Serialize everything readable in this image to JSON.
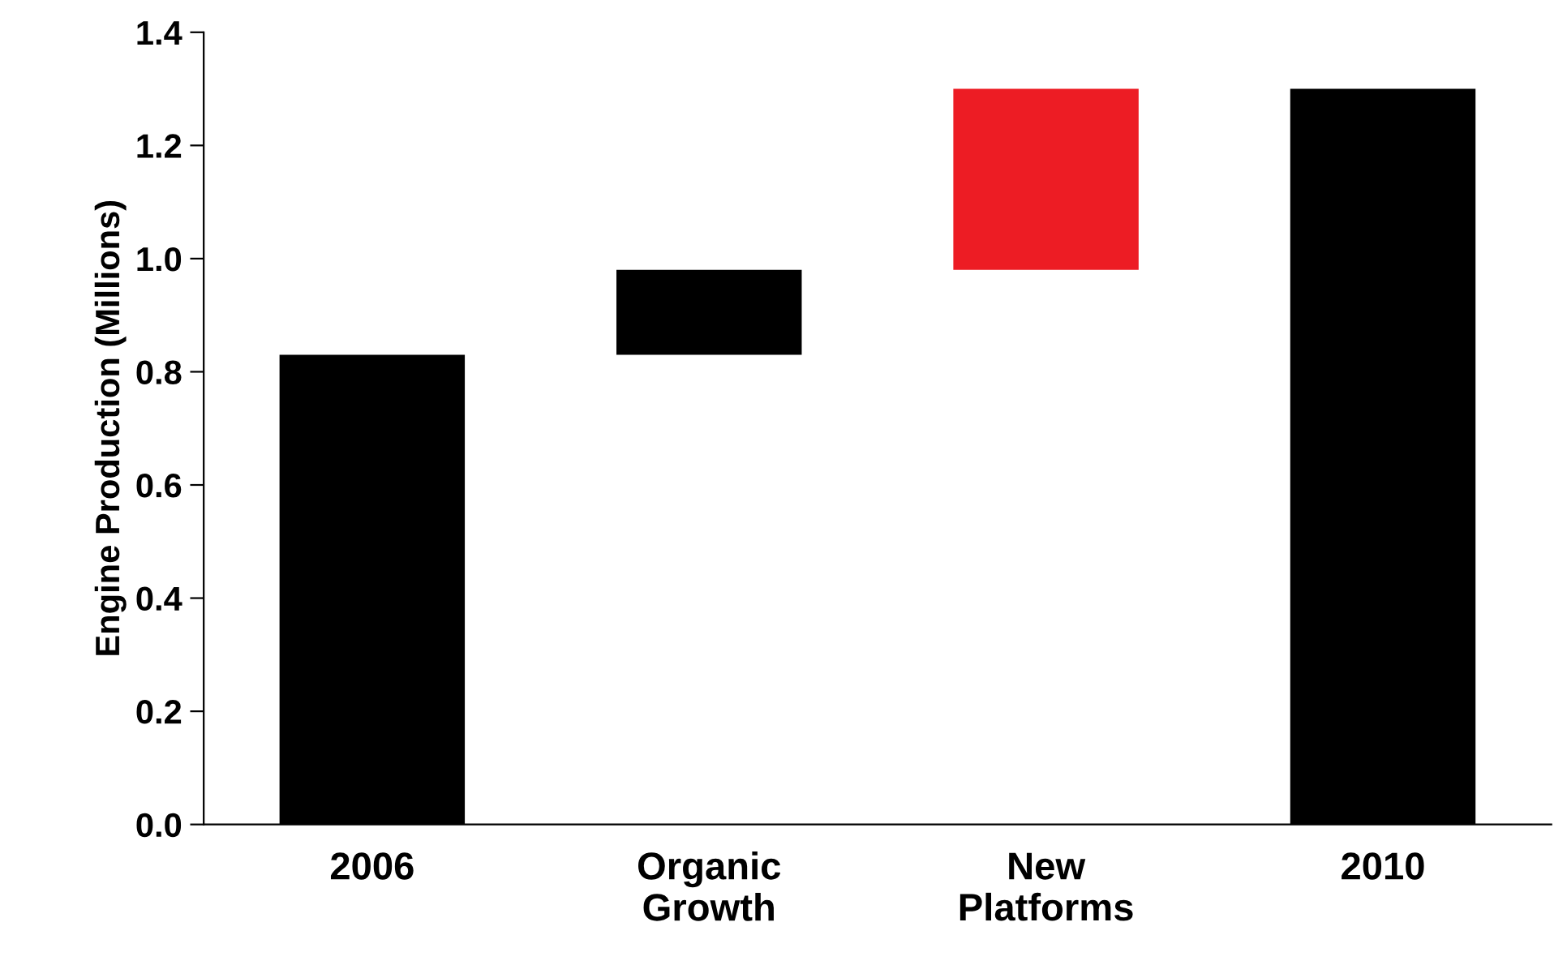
{
  "chart_data": {
    "type": "bar",
    "ylabel": "Engine Production (Millions)",
    "categories": [
      "2006",
      "Organic\nGrowth",
      "New\nPlatforms",
      "2010"
    ],
    "values": [
      0.83,
      0.15,
      0.32,
      1.3
    ],
    "base": [
      0,
      0.83,
      0.98,
      0
    ],
    "colors": [
      "#000000",
      "#000000",
      "#ed1c24",
      "#000000"
    ],
    "ylim": [
      0,
      1.4
    ],
    "yticks": [
      {
        "value": 0,
        "label": "0.0"
      },
      {
        "value": 0.2,
        "label": "0.2"
      },
      {
        "value": 0.4,
        "label": "0.4"
      },
      {
        "value": 0.6,
        "label": "0.6"
      },
      {
        "value": 0.8,
        "label": "0.8"
      },
      {
        "value": 1.0,
        "label": "1.0"
      },
      {
        "value": 1.2,
        "label": "1.2"
      },
      {
        "value": 1.4,
        "label": "1.4"
      }
    ],
    "grid": false,
    "legend": false
  }
}
